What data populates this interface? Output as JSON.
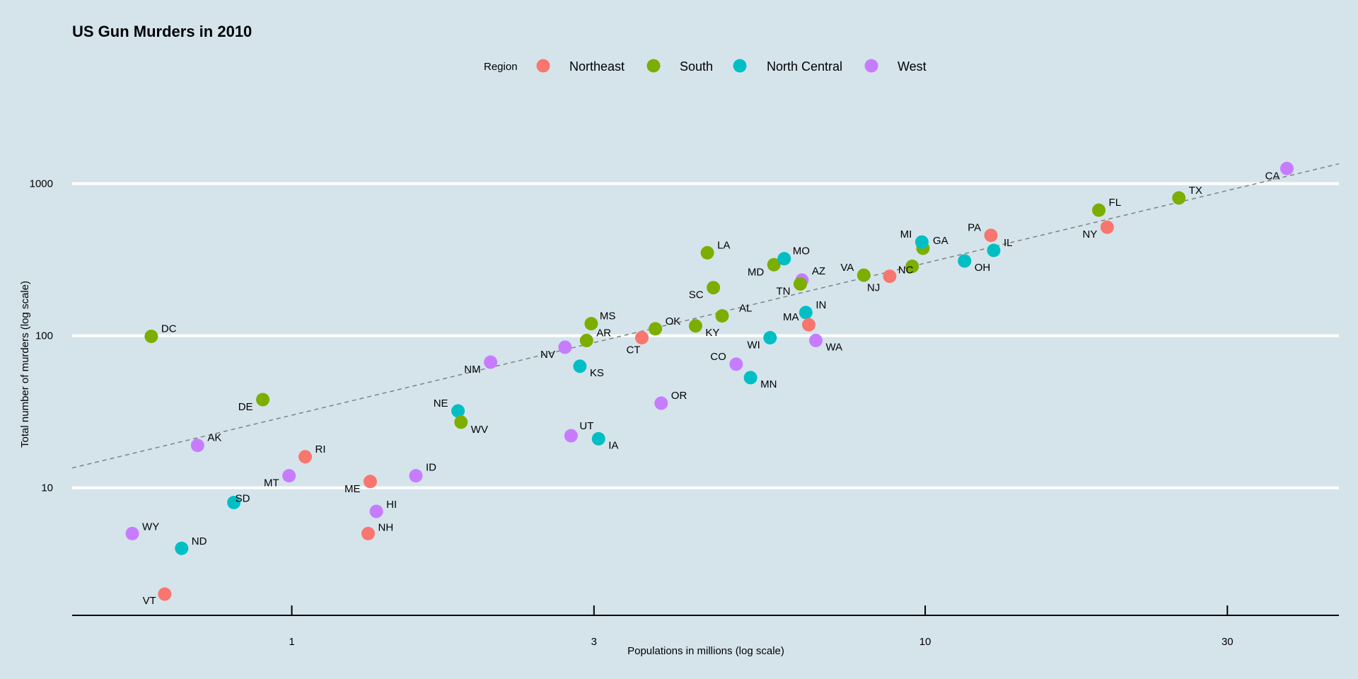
{
  "chart_data": {
    "type": "scatter",
    "title": "US Gun Murders in 2010",
    "xlabel": "Populations in millions (log scale)",
    "ylabel": "Total number of murders (log scale)",
    "x_scale": "log10",
    "y_scale": "log10",
    "xlim": [
      0.45,
      45
    ],
    "ylim": [
      1.45,
      3600
    ],
    "x_ticks": [
      {
        "value": 1,
        "label": "1"
      },
      {
        "value": 3,
        "label": "3"
      },
      {
        "value": 10,
        "label": "10"
      },
      {
        "value": 30,
        "label": "30"
      }
    ],
    "y_ticks": [
      {
        "value": 10,
        "label": "10"
      },
      {
        "value": 100,
        "label": "100"
      },
      {
        "value": 1000,
        "label": "1000"
      }
    ],
    "grid": "horizontal major only",
    "legend_title": "Region",
    "legend_position": "top",
    "regions": [
      {
        "name": "Northeast",
        "color": "#f8766d"
      },
      {
        "name": "South",
        "color": "#7cae00"
      },
      {
        "name": "North Central",
        "color": "#00bfc4"
      },
      {
        "name": "West",
        "color": "#c77cff"
      }
    ],
    "reference_line": {
      "style": "dashed",
      "color": "#808080",
      "slope": 1,
      "intercept_log10": 1.4773
    },
    "points": [
      {
        "label": "AL",
        "region": "South",
        "population": 4.78,
        "murders": 135
      },
      {
        "label": "AK",
        "region": "West",
        "population": 0.71,
        "murders": 19
      },
      {
        "label": "AZ",
        "region": "West",
        "population": 6.39,
        "murders": 232
      },
      {
        "label": "AR",
        "region": "South",
        "population": 2.92,
        "murders": 93
      },
      {
        "label": "CA",
        "region": "West",
        "population": 37.25,
        "murders": 1257
      },
      {
        "label": "CO",
        "region": "West",
        "population": 5.03,
        "murders": 65
      },
      {
        "label": "CT",
        "region": "Northeast",
        "population": 3.57,
        "murders": 97
      },
      {
        "label": "DE",
        "region": "South",
        "population": 0.9,
        "murders": 38
      },
      {
        "label": "DC",
        "region": "South",
        "population": 0.6,
        "murders": 99
      },
      {
        "label": "FL",
        "region": "South",
        "population": 18.8,
        "murders": 669
      },
      {
        "label": "GA",
        "region": "South",
        "population": 9.92,
        "murders": 376
      },
      {
        "label": "HI",
        "region": "West",
        "population": 1.36,
        "murders": 7
      },
      {
        "label": "ID",
        "region": "West",
        "population": 1.57,
        "murders": 12
      },
      {
        "label": "IL",
        "region": "North Central",
        "population": 12.83,
        "murders": 364
      },
      {
        "label": "IN",
        "region": "North Central",
        "population": 6.48,
        "murders": 142
      },
      {
        "label": "IA",
        "region": "North Central",
        "population": 3.05,
        "murders": 21
      },
      {
        "label": "KS",
        "region": "North Central",
        "population": 2.85,
        "murders": 63
      },
      {
        "label": "KY",
        "region": "South",
        "population": 4.34,
        "murders": 116
      },
      {
        "label": "LA",
        "region": "South",
        "population": 4.53,
        "murders": 351
      },
      {
        "label": "ME",
        "region": "Northeast",
        "population": 1.33,
        "murders": 11
      },
      {
        "label": "MD",
        "region": "South",
        "population": 5.77,
        "murders": 293
      },
      {
        "label": "MA",
        "region": "Northeast",
        "population": 6.55,
        "murders": 118
      },
      {
        "label": "MI",
        "region": "North Central",
        "population": 9.88,
        "murders": 413
      },
      {
        "label": "MN",
        "region": "North Central",
        "population": 5.3,
        "murders": 53
      },
      {
        "label": "MS",
        "region": "South",
        "population": 2.97,
        "murders": 120
      },
      {
        "label": "MO",
        "region": "North Central",
        "population": 5.99,
        "murders": 321
      },
      {
        "label": "MT",
        "region": "West",
        "population": 0.99,
        "murders": 12
      },
      {
        "label": "NE",
        "region": "North Central",
        "population": 1.83,
        "murders": 32
      },
      {
        "label": "NV",
        "region": "West",
        "population": 2.7,
        "murders": 84
      },
      {
        "label": "NH",
        "region": "Northeast",
        "population": 1.32,
        "murders": 5
      },
      {
        "label": "NJ",
        "region": "Northeast",
        "population": 8.79,
        "murders": 246
      },
      {
        "label": "NM",
        "region": "West",
        "population": 2.06,
        "murders": 67
      },
      {
        "label": "NY",
        "region": "Northeast",
        "population": 19.38,
        "murders": 517
      },
      {
        "label": "NC",
        "region": "South",
        "population": 9.54,
        "murders": 286
      },
      {
        "label": "ND",
        "region": "North Central",
        "population": 0.67,
        "murders": 4
      },
      {
        "label": "OH",
        "region": "North Central",
        "population": 11.54,
        "murders": 310
      },
      {
        "label": "OK",
        "region": "South",
        "population": 3.75,
        "murders": 111
      },
      {
        "label": "OR",
        "region": "West",
        "population": 3.83,
        "murders": 36
      },
      {
        "label": "PA",
        "region": "Northeast",
        "population": 12.7,
        "murders": 457
      },
      {
        "label": "RI",
        "region": "Northeast",
        "population": 1.05,
        "murders": 16
      },
      {
        "label": "SC",
        "region": "South",
        "population": 4.63,
        "murders": 207
      },
      {
        "label": "SD",
        "region": "North Central",
        "population": 0.81,
        "murders": 8
      },
      {
        "label": "TN",
        "region": "South",
        "population": 6.35,
        "murders": 219
      },
      {
        "label": "TX",
        "region": "South",
        "population": 25.15,
        "murders": 805
      },
      {
        "label": "UT",
        "region": "West",
        "population": 2.76,
        "murders": 22
      },
      {
        "label": "VT",
        "region": "Northeast",
        "population": 0.63,
        "murders": 2
      },
      {
        "label": "VA",
        "region": "South",
        "population": 8.0,
        "murders": 250
      },
      {
        "label": "WA",
        "region": "West",
        "population": 6.72,
        "murders": 93
      },
      {
        "label": "WV",
        "region": "South",
        "population": 1.85,
        "murders": 27
      },
      {
        "label": "WI",
        "region": "North Central",
        "population": 5.69,
        "murders": 97
      },
      {
        "label": "WY",
        "region": "West",
        "population": 0.56,
        "murders": 5
      }
    ]
  }
}
